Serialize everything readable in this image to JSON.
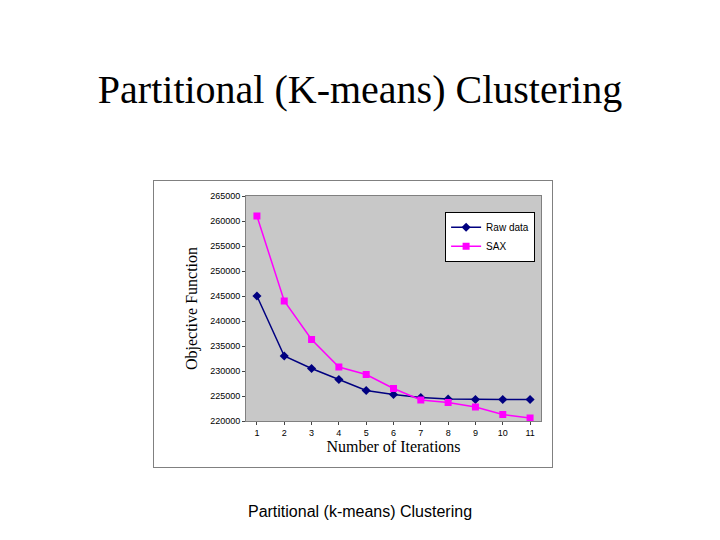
{
  "page": {
    "title": "Partitional (K-means) Clustering",
    "caption": "Partitional (k-means) Clustering"
  },
  "chart_data": {
    "type": "line",
    "x_label": "Number of Iterations",
    "y_label": "Objective Function",
    "x": [
      1,
      2,
      3,
      4,
      5,
      6,
      7,
      8,
      9,
      10,
      11
    ],
    "series": [
      {
        "name": "Raw data",
        "color": "#000080",
        "marker": "diamond",
        "values": [
          245000,
          233000,
          230500,
          228300,
          226100,
          225300,
          224700,
          224400,
          224300,
          224300,
          224300
        ]
      },
      {
        "name": "SAX",
        "color": "#ff00ff",
        "marker": "square",
        "values": [
          261000,
          244000,
          236300,
          230800,
          229300,
          226500,
          224200,
          223700,
          222800,
          221300,
          220600
        ]
      }
    ],
    "xlim": [
      0.6,
      11.4
    ],
    "xticks": [
      1,
      2,
      3,
      4,
      5,
      6,
      7,
      8,
      9,
      10,
      11
    ],
    "ylim": [
      220000,
      265000
    ],
    "yticks": [
      220000,
      225000,
      230000,
      235000,
      240000,
      245000,
      250000,
      255000,
      260000,
      265000
    ],
    "grid": false,
    "legend": "upper right"
  }
}
